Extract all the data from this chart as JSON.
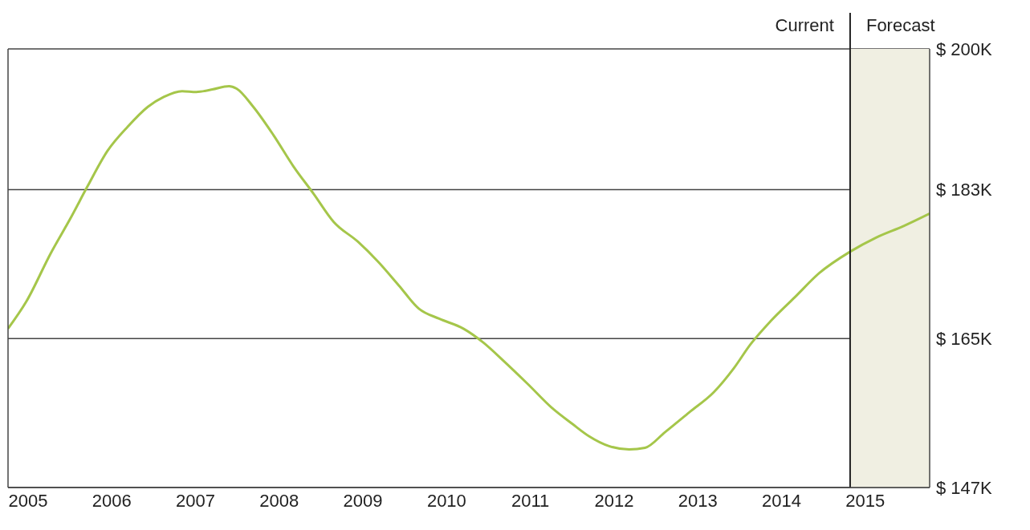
{
  "chart_data": {
    "type": "line",
    "x": [
      2004.76,
      2004.98,
      2005.27,
      2005.51,
      2005.71,
      2005.95,
      2006.19,
      2006.43,
      2006.62,
      2006.84,
      2007.01,
      2007.2,
      2007.4,
      2007.49,
      2007.69,
      2007.93,
      2008.17,
      2008.41,
      2008.65,
      2008.94,
      2009.18,
      2009.43,
      2009.67,
      2009.91,
      2010.2,
      2010.44,
      2010.68,
      2010.97,
      2011.26,
      2011.5,
      2011.7,
      2011.94,
      2012.18,
      2012.37,
      2012.61,
      2012.9,
      2013.19,
      2013.43,
      2013.63,
      2013.87,
      2014.16,
      2014.45,
      2014.82,
      2015.13,
      2015.46,
      2015.77
    ],
    "series": [
      {
        "color": "#a5c64a",
        "values": [
          166.2,
          169.5,
          175.3,
          179.6,
          183.4,
          187.7,
          190.6,
          193.0,
          194.2,
          194.9,
          194.8,
          195.1,
          195.5,
          195.2,
          193.0,
          189.6,
          185.8,
          182.5,
          179.1,
          176.7,
          174.3,
          171.4,
          168.6,
          167.4,
          166.2,
          164.5,
          162.3,
          159.5,
          156.6,
          154.7,
          153.2,
          152.0,
          151.6,
          151.8,
          153.7,
          156.1,
          158.5,
          161.4,
          164.3,
          167.1,
          170.0,
          172.9,
          175.5,
          177.2,
          178.6,
          180.1
        ]
      }
    ],
    "xlim": [
      2004.76,
      2015.77
    ],
    "xticks": [
      2005,
      2006,
      2007,
      2008,
      2009,
      2010,
      2011,
      2012,
      2013,
      2014,
      2015
    ],
    "ylim": [
      147,
      200
    ],
    "yticks": [
      {
        "value": 147,
        "label": "$ 147K"
      },
      {
        "value": 165,
        "label": "$ 165K"
      },
      {
        "value": 183,
        "label": "$ 183K"
      },
      {
        "value": 200,
        "label": "$ 200K"
      }
    ],
    "grid": "y",
    "marker": "none",
    "line_style": "solid",
    "legend": false,
    "ref_lines": [
      {
        "axis": "x",
        "value": 2014.82,
        "label": "Current",
        "color": "#222222"
      }
    ],
    "bands": [
      {
        "axis": "x",
        "from": 2014.82,
        "to": 2015.77,
        "label": "Forecast",
        "color": "#f0efe2"
      }
    ]
  }
}
